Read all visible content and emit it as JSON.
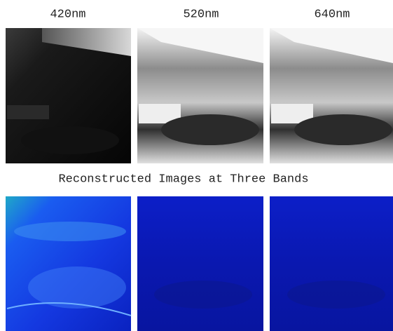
{
  "band_labels": [
    "420nm",
    "520nm",
    "640nm"
  ],
  "caption": "Reconstructed Images at Three Bands"
}
